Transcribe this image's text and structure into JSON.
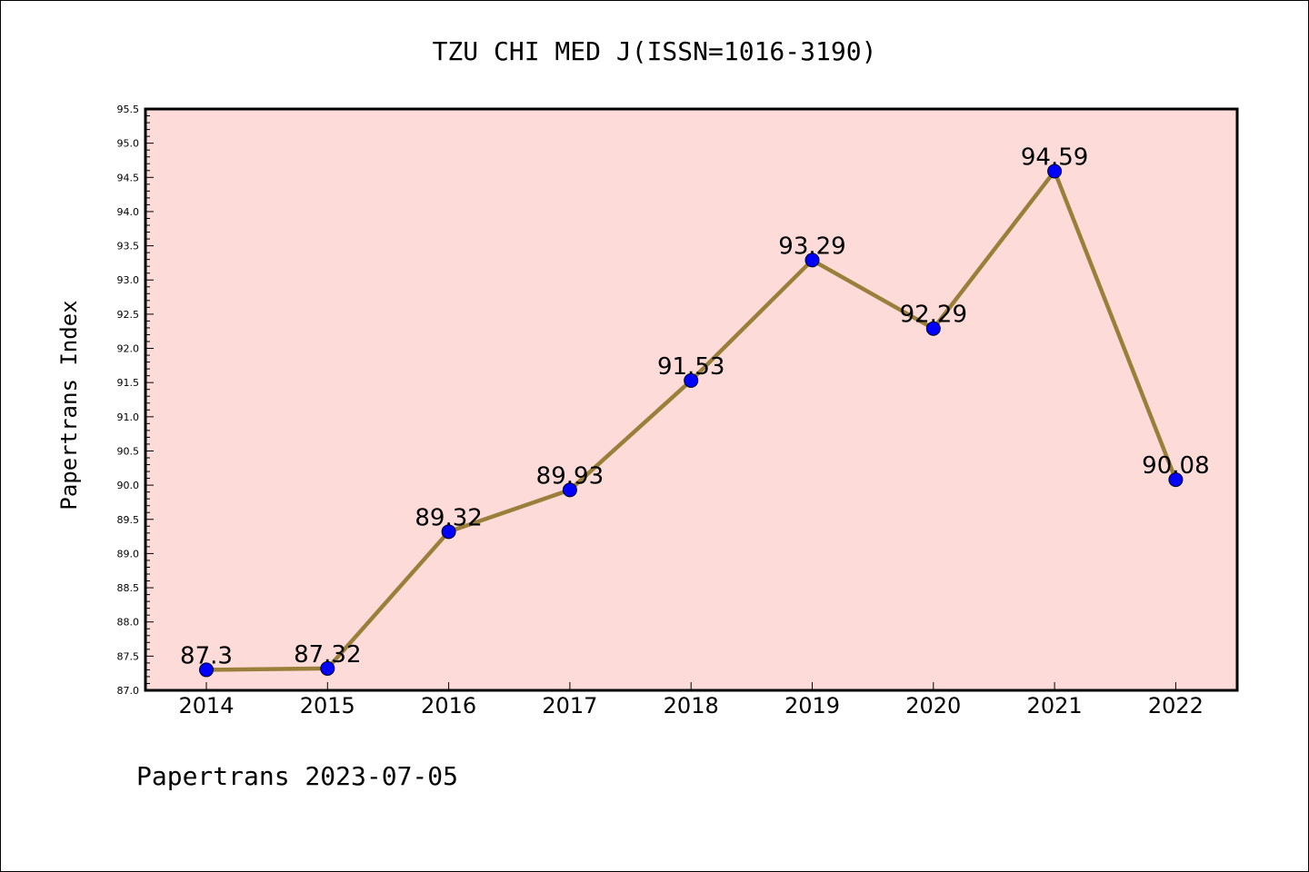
{
  "chart_data": {
    "type": "line",
    "title": "TZU CHI MED J(ISSN=1016-3190)",
    "xlabel": "",
    "ylabel": "Papertrans Index",
    "categories": [
      "2014",
      "2015",
      "2016",
      "2017",
      "2018",
      "2019",
      "2020",
      "2021",
      "2022"
    ],
    "series": [
      {
        "values": [
          87.3,
          87.32,
          89.32,
          89.93,
          91.53,
          93.29,
          92.29,
          94.59,
          90.08
        ],
        "data_labels": [
          "87.3",
          "87.32",
          "89.32",
          "89.93",
          "91.53",
          "93.29",
          "92.29",
          "94.59",
          "90.08"
        ]
      }
    ],
    "ylim": [
      87.0,
      95.5
    ],
    "y_ticks": [
      "87.0",
      "87.5",
      "88.0",
      "88.5",
      "89.0",
      "89.5",
      "90.0",
      "90.5",
      "91.0",
      "91.5",
      "92.0",
      "92.5",
      "93.0",
      "93.5",
      "94.0",
      "94.5",
      "95.0",
      "95.5"
    ],
    "grid": false,
    "legend": "none",
    "colors": {
      "plot_background": "#fddbd9",
      "line": "#9a7f3a",
      "marker": "#0000ff"
    }
  },
  "footer": "Papertrans 2023-07-05"
}
